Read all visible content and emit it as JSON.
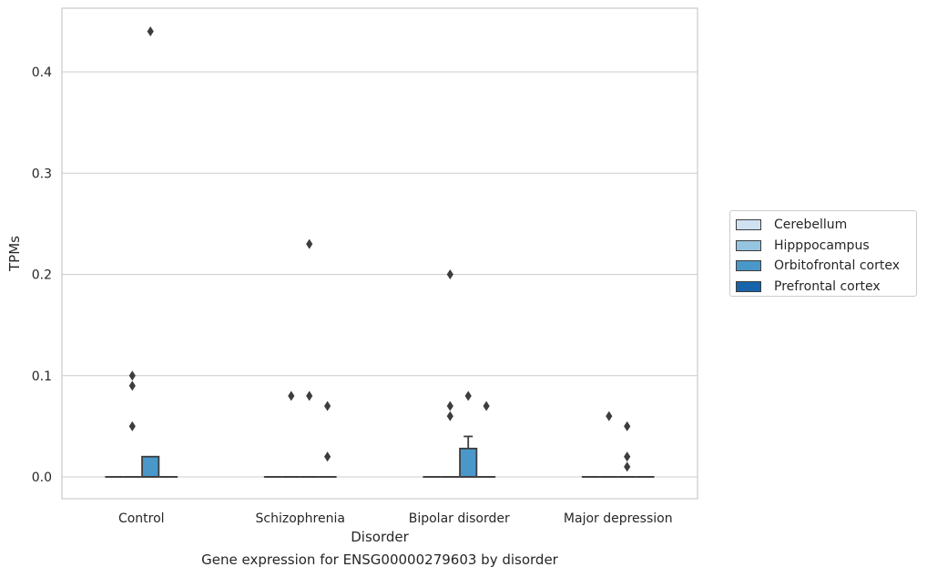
{
  "chart_data": {
    "type": "box",
    "title": "",
    "caption": "Gene expression for ENSG00000279603 by disorder",
    "xlabel": "Disorder",
    "ylabel": "TPMs",
    "categories": [
      "Control",
      "Schizophrenia",
      "Bipolar disorder",
      "Major depression"
    ],
    "ylim": [
      -0.022,
      0.463
    ],
    "yticks": [
      "0.0",
      "0.1",
      "0.2",
      "0.3",
      "0.4"
    ],
    "ytick_values": [
      0,
      0.1,
      0.2,
      0.3,
      0.4
    ],
    "grid": "horizontal",
    "legend_position": "right",
    "series": [
      {
        "name": "Cerebellum",
        "color": "#d0e1f2",
        "boxes": [
          {
            "q1": 0,
            "median": 0,
            "q3": 0,
            "whislo": 0,
            "whishi": 0,
            "fliers": []
          },
          {
            "q1": 0,
            "median": 0,
            "q3": 0,
            "whislo": 0,
            "whishi": 0,
            "fliers": []
          },
          {
            "q1": 0,
            "median": 0,
            "q3": 0,
            "whislo": 0,
            "whishi": 0,
            "fliers": []
          },
          {
            "q1": 0,
            "median": 0,
            "q3": 0,
            "whislo": 0,
            "whishi": 0,
            "fliers": []
          }
        ]
      },
      {
        "name": "Hipppocampus",
        "color": "#94c4df",
        "boxes": [
          {
            "q1": 0,
            "median": 0,
            "q3": 0,
            "whislo": 0,
            "whishi": 0,
            "fliers": [
              0.05,
              0.09,
              0.1
            ]
          },
          {
            "q1": 0,
            "median": 0,
            "q3": 0,
            "whislo": 0,
            "whishi": 0,
            "fliers": [
              0.08
            ]
          },
          {
            "q1": 0,
            "median": 0,
            "q3": 0,
            "whislo": 0,
            "whishi": 0,
            "fliers": [
              0.06,
              0.07,
              0.2
            ]
          },
          {
            "q1": 0,
            "median": 0,
            "q3": 0,
            "whislo": 0,
            "whishi": 0,
            "fliers": [
              0.06
            ]
          }
        ]
      },
      {
        "name": "Orbitofrontal cortex",
        "color": "#4a98c9",
        "boxes": [
          {
            "q1": 0,
            "median": 0,
            "q3": 0.02,
            "whislo": 0,
            "whishi": 0.02,
            "fliers": [
              0.44
            ]
          },
          {
            "q1": 0,
            "median": 0,
            "q3": 0,
            "whislo": 0,
            "whishi": 0,
            "fliers": [
              0.08,
              0.23
            ]
          },
          {
            "q1": 0,
            "median": 0,
            "q3": 0.028,
            "whislo": 0,
            "whishi": 0.04,
            "fliers": [
              0.08
            ]
          },
          {
            "q1": 0,
            "median": 0,
            "q3": 0,
            "whislo": 0,
            "whishi": 0,
            "fliers": [
              0.01,
              0.02,
              0.05
            ]
          }
        ]
      },
      {
        "name": "Prefrontal cortex",
        "color": "#1764ab",
        "boxes": [
          {
            "q1": 0,
            "median": 0,
            "q3": 0,
            "whislo": 0,
            "whishi": 0,
            "fliers": []
          },
          {
            "q1": 0,
            "median": 0,
            "q3": 0,
            "whislo": 0,
            "whishi": 0,
            "fliers": [
              0.02,
              0.07
            ]
          },
          {
            "q1": 0,
            "median": 0,
            "q3": 0,
            "whislo": 0,
            "whishi": 0,
            "fliers": [
              0.07
            ]
          },
          {
            "q1": 0,
            "median": 0,
            "q3": 0,
            "whislo": 0,
            "whishi": 0,
            "fliers": []
          }
        ]
      }
    ]
  }
}
